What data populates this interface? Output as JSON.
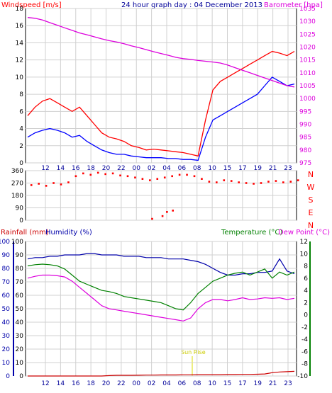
{
  "header": {
    "windspeed_label": "Windspeed [m/s]",
    "title": "24 hour graph day : 04 December 2013",
    "barometer_label": "Barometer [hpa]"
  },
  "panel2_header": {
    "rainfall_label": "Rainfall (mm)",
    "humidity_label": "Humidity (%)",
    "temperature_label": "Temperature (°C)",
    "dewpoint_label": "Dew Point (°C)"
  },
  "sun_rise_label": "Sun Rise",
  "colors": {
    "wind_gust": "#ff0000",
    "wind_avg": "#0000ff",
    "barometer": "#dd00dd",
    "direction": "#ff0000",
    "humidity": "#0000aa",
    "temperature": "#008000",
    "dewpoint": "#dd00dd",
    "rainfall": "#cc0000",
    "sun_rise": "#dddd00",
    "grid": "#d0d0d0"
  },
  "chart_data": [
    {
      "type": "line",
      "x_labels": [
        "12",
        "14",
        "16",
        "18",
        "20",
        "22",
        "00",
        "02",
        "04",
        "06",
        "08",
        "10",
        "15",
        "17",
        "19",
        "21",
        "23"
      ],
      "left_axis": {
        "label": "Windspeed [m/s]",
        "ticks": [
          0,
          2,
          4,
          6,
          8,
          10,
          12,
          14,
          16,
          18
        ],
        "ylim": [
          0,
          18
        ]
      },
      "right_axis": {
        "label": "Barometer [hpa]",
        "ticks": [
          975,
          980,
          985,
          990,
          995,
          1000,
          1005,
          1010,
          1015,
          1020,
          1025,
          1030,
          1035
        ],
        "ylim": [
          975,
          1035
        ]
      },
      "series": [
        {
          "name": "Windspeed gust",
          "axis": "left",
          "values": [
            5.5,
            6.5,
            7.2,
            7.5,
            7.0,
            6.5,
            6.0,
            6.5,
            5.5,
            4.5,
            3.5,
            3.0,
            2.8,
            2.5,
            2.0,
            1.8,
            1.5,
            1.6,
            1.5,
            1.4,
            1.3,
            1.2,
            1.0,
            0.8,
            5.0,
            8.5,
            9.5,
            10.0,
            10.5,
            11.0,
            11.5,
            12.0,
            12.5,
            13.0,
            12.8,
            12.5,
            13.0
          ]
        },
        {
          "name": "Windspeed average",
          "axis": "left",
          "values": [
            3.0,
            3.5,
            3.8,
            4.0,
            3.8,
            3.5,
            3.0,
            3.2,
            2.5,
            2.0,
            1.5,
            1.2,
            1.0,
            1.0,
            0.8,
            0.7,
            0.6,
            0.6,
            0.6,
            0.5,
            0.5,
            0.4,
            0.4,
            0.3,
            3.0,
            5.0,
            5.5,
            6.0,
            6.5,
            7.0,
            7.5,
            8.0,
            9.0,
            10.0,
            9.5,
            9.0,
            9.2
          ]
        },
        {
          "name": "Barometer",
          "axis": "right",
          "values": [
            1031.5,
            1031.2,
            1030.5,
            1029.5,
            1028.5,
            1027.5,
            1026.5,
            1025.5,
            1024.8,
            1024.0,
            1023.2,
            1022.5,
            1022.0,
            1021.3,
            1020.5,
            1019.8,
            1019.0,
            1018.2,
            1017.5,
            1016.8,
            1016.0,
            1015.5,
            1015.2,
            1014.8,
            1014.5,
            1014.2,
            1013.8,
            1013.0,
            1012.0,
            1011.0,
            1010.0,
            1009.0,
            1008.0,
            1007.0,
            1006.0,
            1005.0,
            1004.5
          ]
        }
      ]
    },
    {
      "type": "scatter",
      "y_ticks": [
        0,
        90,
        180,
        270,
        360
      ],
      "direction_labels": [
        "N",
        "W",
        "S",
        "E",
        "N"
      ],
      "ylim": [
        0,
        360
      ],
      "series": [
        {
          "name": "Wind direction",
          "points": [
            [
              0.5,
              255
            ],
            [
              1.5,
              265
            ],
            [
              2.5,
              250
            ],
            [
              3.5,
              270
            ],
            [
              4.5,
              260
            ],
            [
              5.5,
              275
            ],
            [
              6.5,
              320
            ],
            [
              7.5,
              340
            ],
            [
              8.5,
              330
            ],
            [
              9.5,
              345
            ],
            [
              10.5,
              335
            ],
            [
              11.5,
              340
            ],
            [
              12.5,
              325
            ],
            [
              13.5,
              320
            ],
            [
              14.5,
              310
            ],
            [
              15.5,
              300
            ],
            [
              16.5,
              290
            ],
            [
              17.5,
              300
            ],
            [
              18.5,
              310
            ],
            [
              19.5,
              320
            ],
            [
              20.5,
              330
            ],
            [
              21.5,
              330
            ],
            [
              22.5,
              320
            ],
            [
              23.5,
              300
            ],
            [
              24.5,
              280
            ],
            [
              25.5,
              275
            ],
            [
              26.5,
              290
            ],
            [
              27.5,
              285
            ],
            [
              28.5,
              275
            ],
            [
              29.5,
              270
            ],
            [
              30.5,
              265
            ],
            [
              31.5,
              270
            ],
            [
              32.5,
              280
            ],
            [
              33.5,
              285
            ],
            [
              34.5,
              275
            ],
            [
              35.5,
              280
            ],
            [
              36.5,
              290
            ],
            [
              16.8,
              10
            ],
            [
              18.2,
              30
            ],
            [
              18.8,
              60
            ],
            [
              19.6,
              70
            ]
          ]
        }
      ]
    },
    {
      "type": "line",
      "x_labels": [
        "12",
        "14",
        "16",
        "18",
        "20",
        "22",
        "00",
        "02",
        "04",
        "06",
        "08",
        "10",
        "15",
        "17",
        "19",
        "21",
        "23"
      ],
      "left_axis_outer": {
        "label": "Rainfall (mm)",
        "ticks": [
          0,
          10,
          20,
          30,
          40,
          50,
          60,
          70,
          80,
          90,
          100
        ],
        "ylim": [
          0,
          100
        ]
      },
      "left_axis_inner": {
        "label": "Humidity (%)",
        "ticks": [
          0,
          10,
          20,
          30,
          40,
          50,
          60,
          70,
          80,
          90,
          100
        ],
        "ylim": [
          0,
          100
        ]
      },
      "right_axis": {
        "label": "Temperature (°C) / Dew Point (°C)",
        "ticks": [
          -10,
          -8,
          -6,
          -4,
          -2,
          0,
          2,
          4,
          6,
          8,
          10,
          12
        ],
        "ylim": [
          -10,
          12
        ]
      },
      "series": [
        {
          "name": "Humidity",
          "axis": "left",
          "values": [
            87,
            88,
            88,
            89,
            89,
            90,
            90,
            90,
            91,
            91,
            90,
            90,
            90,
            89,
            89,
            89,
            88,
            88,
            88,
            87,
            87,
            87,
            86,
            85,
            83,
            80,
            77,
            75,
            75,
            76,
            76,
            77,
            77,
            78,
            87,
            78,
            76
          ]
        },
        {
          "name": "Temperature",
          "axis": "right",
          "values": [
            8.0,
            8.2,
            8.3,
            8.2,
            8.0,
            7.5,
            6.5,
            5.5,
            5.0,
            4.5,
            4.0,
            3.8,
            3.5,
            3.0,
            2.8,
            2.6,
            2.4,
            2.2,
            2.0,
            1.5,
            1.0,
            0.8,
            2.0,
            3.5,
            4.5,
            5.5,
            6.0,
            6.5,
            6.8,
            7.0,
            6.5,
            7.0,
            7.5,
            6.0,
            7.0,
            6.5,
            7.0
          ]
        },
        {
          "name": "Dew Point",
          "axis": "right",
          "values": [
            6.0,
            6.3,
            6.5,
            6.5,
            6.4,
            6.2,
            5.5,
            4.5,
            3.5,
            2.5,
            1.5,
            1.0,
            0.8,
            0.6,
            0.4,
            0.2,
            0.0,
            -0.2,
            -0.4,
            -0.6,
            -0.8,
            -1.0,
            -0.5,
            1.0,
            2.0,
            2.5,
            2.5,
            2.3,
            2.5,
            2.8,
            2.5,
            2.6,
            2.8,
            2.7,
            2.8,
            2.5,
            2.7
          ]
        },
        {
          "name": "Rainfall",
          "axis": "left",
          "values": [
            0,
            0,
            0,
            0,
            0,
            0,
            0,
            0,
            0,
            0,
            0,
            0.3,
            0.5,
            0.5,
            0.5,
            0.6,
            0.7,
            0.7,
            0.8,
            0.8,
            0.8,
            0.9,
            0.9,
            1.0,
            1.0,
            1.0,
            1.0,
            1.1,
            1.1,
            1.2,
            1.2,
            1.3,
            1.5,
            2.5,
            3.0,
            3.2,
            3.5
          ]
        }
      ]
    }
  ]
}
